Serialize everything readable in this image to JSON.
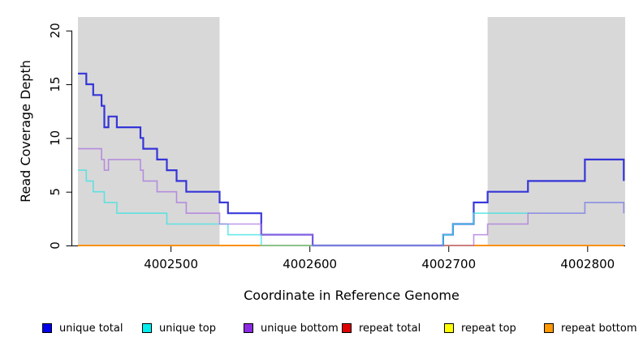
{
  "figure": {
    "background": "#ffffff",
    "shade_color": "#d8d8d8",
    "axis_color": "#000000"
  },
  "chart_data": {
    "type": "line",
    "subtype": "step",
    "title": "",
    "xlabel": "Coordinate in Reference Genome",
    "ylabel": "Read Coverage Depth",
    "xlim": [
      4002433,
      4002827
    ],
    "ylim": [
      0,
      21.3
    ],
    "x_ticks": [
      4002500,
      4002600,
      4002700,
      4002800
    ],
    "y_ticks": [
      0,
      5,
      10,
      15,
      20
    ],
    "grid": false,
    "shaded_regions": [
      [
        4002433,
        4002535
      ],
      [
        4002728,
        4002827
      ]
    ],
    "series": [
      {
        "name": "unique total",
        "color": "#2323d8",
        "width": 2.2,
        "opacity": 0.9,
        "z": 3,
        "steps": [
          [
            4002433,
            16
          ],
          [
            4002439,
            15
          ],
          [
            4002444,
            14
          ],
          [
            4002450,
            13
          ],
          [
            4002452,
            11
          ],
          [
            4002455,
            12
          ],
          [
            4002461,
            11
          ],
          [
            4002478,
            10
          ],
          [
            4002480,
            9
          ],
          [
            4002490,
            8
          ],
          [
            4002497,
            7
          ],
          [
            4002504,
            6
          ],
          [
            4002511,
            5
          ],
          [
            4002535,
            4
          ],
          [
            4002541,
            3
          ],
          [
            4002565,
            1
          ],
          [
            4002602,
            0
          ],
          [
            4002696,
            1
          ],
          [
            4002703,
            2
          ],
          [
            4002718,
            4
          ],
          [
            4002728,
            5
          ],
          [
            4002757,
            6
          ],
          [
            4002798,
            8
          ],
          [
            4002826,
            6
          ]
        ]
      },
      {
        "name": "unique top",
        "color": "#44e2e2",
        "width": 1.6,
        "opacity": 0.8,
        "z": 4,
        "steps": [
          [
            4002433,
            7
          ],
          [
            4002439,
            6
          ],
          [
            4002444,
            5
          ],
          [
            4002452,
            4
          ],
          [
            4002461,
            3
          ],
          [
            4002497,
            2
          ],
          [
            4002541,
            1
          ],
          [
            4002565,
            0
          ],
          [
            4002696,
            1
          ],
          [
            4002703,
            2
          ],
          [
            4002718,
            3
          ],
          [
            4002798,
            4
          ],
          [
            4002826,
            3
          ]
        ]
      },
      {
        "name": "unique bottom",
        "color": "#a86fe0",
        "width": 1.6,
        "opacity": 0.72,
        "z": 5,
        "steps": [
          [
            4002433,
            9
          ],
          [
            4002450,
            8
          ],
          [
            4002452,
            7
          ],
          [
            4002455,
            8
          ],
          [
            4002478,
            7
          ],
          [
            4002480,
            6
          ],
          [
            4002490,
            5
          ],
          [
            4002504,
            4
          ],
          [
            4002511,
            3
          ],
          [
            4002535,
            2
          ],
          [
            4002565,
            1
          ],
          [
            4002602,
            0
          ],
          [
            4002718,
            1
          ],
          [
            4002728,
            2
          ],
          [
            4002757,
            3
          ],
          [
            4002798,
            4
          ],
          [
            4002826,
            3
          ]
        ]
      },
      {
        "name": "repeat total",
        "color": "#dd0000",
        "width": 1.5,
        "opacity": 1,
        "z": 0,
        "steps": [
          [
            4002433,
            0
          ],
          [
            4002826,
            0
          ]
        ]
      },
      {
        "name": "repeat top",
        "color": "#ffe800",
        "width": 1.5,
        "opacity": 1,
        "z": 1,
        "steps": [
          [
            4002433,
            0
          ],
          [
            4002826,
            0
          ]
        ]
      },
      {
        "name": "repeat bottom",
        "color": "#ff9100",
        "width": 1.8,
        "opacity": 1,
        "z": 2,
        "steps": [
          [
            4002433,
            0
          ],
          [
            4002826,
            0
          ]
        ]
      }
    ]
  },
  "legend": {
    "items": [
      {
        "label": "unique total",
        "color": "#0000ee"
      },
      {
        "label": "unique top",
        "color": "#00eeee"
      },
      {
        "label": "unique bottom",
        "color": "#8b2be2"
      },
      {
        "label": "repeat total",
        "color": "#dd0000"
      },
      {
        "label": "repeat top",
        "color": "#ffff00"
      },
      {
        "label": "repeat bottom",
        "color": "#ff9900"
      }
    ]
  }
}
